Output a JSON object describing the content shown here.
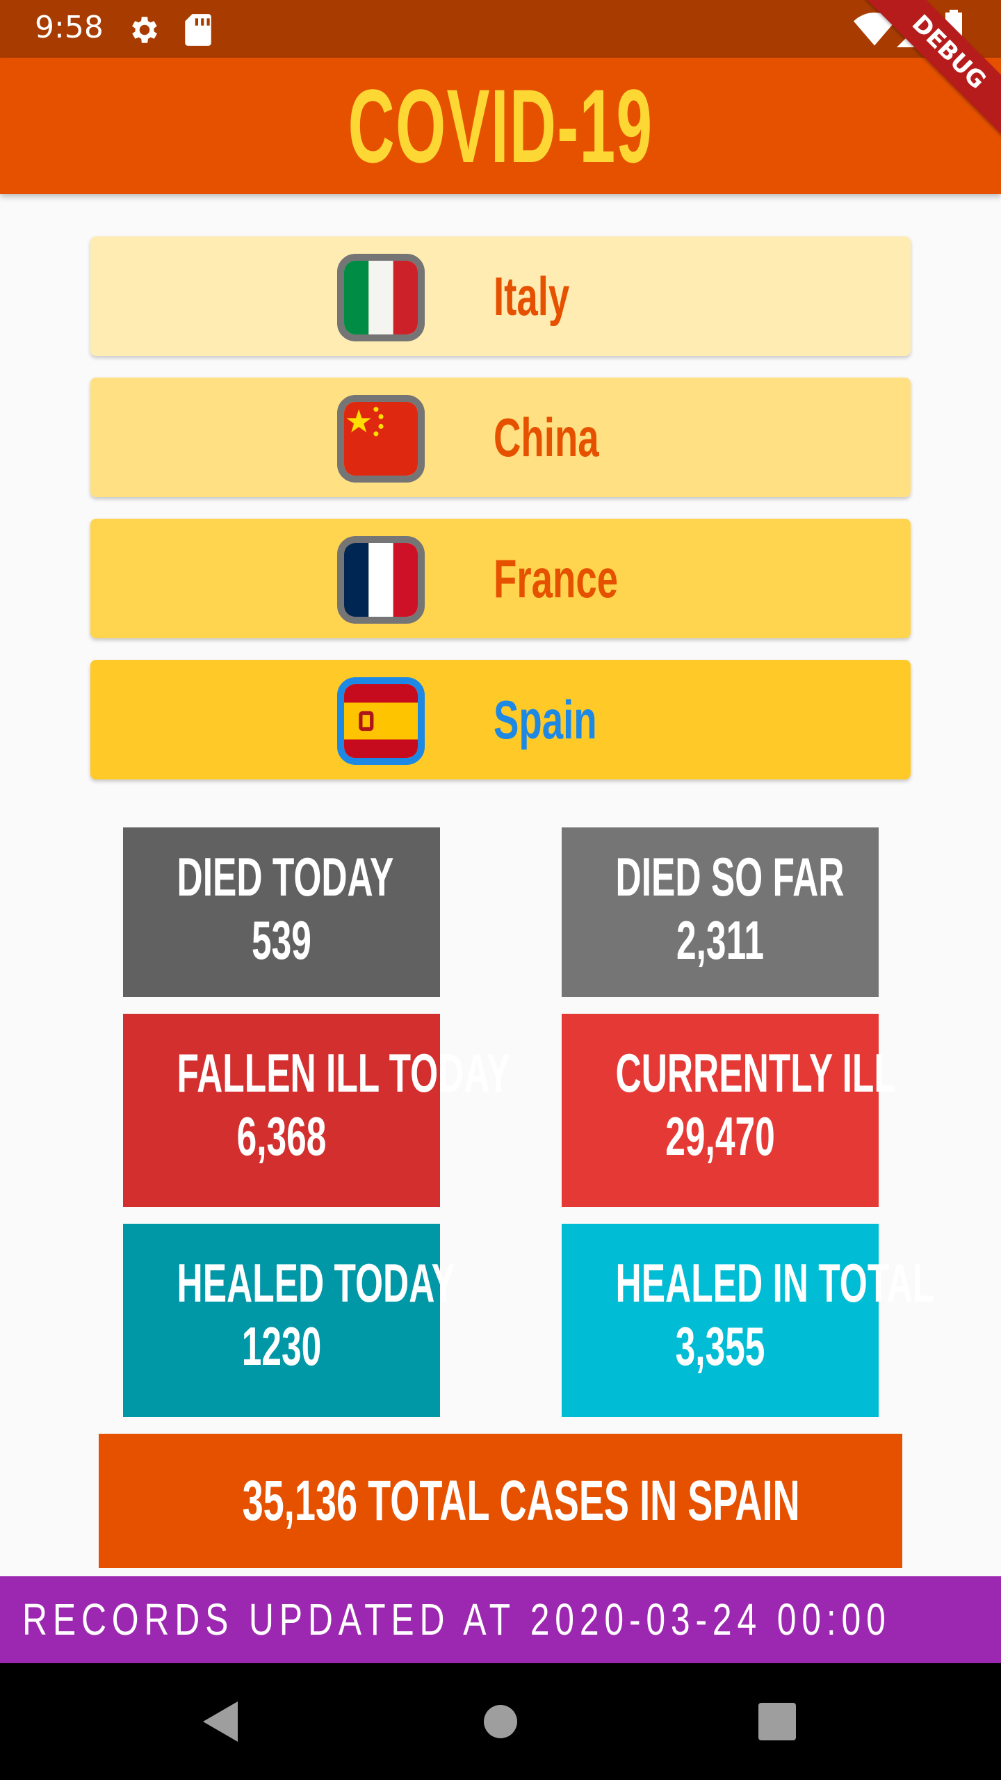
{
  "status_bar": {
    "time": "9:58",
    "icons": [
      "gear-icon",
      "sd-card-icon",
      "wifi-icon",
      "signal-icon",
      "battery-icon"
    ]
  },
  "app_bar": {
    "title": "COVID-19",
    "debug_banner": "DEBUG"
  },
  "countries": [
    {
      "name": "Italy",
      "flag": "italy-flag",
      "bg": "#ffecb3",
      "selected": false
    },
    {
      "name": "China",
      "flag": "china-flag",
      "bg": "#ffe082",
      "selected": false
    },
    {
      "name": "France",
      "flag": "france-flag",
      "bg": "#ffd54f",
      "selected": false
    },
    {
      "name": "Spain",
      "flag": "spain-flag",
      "bg": "#ffca28",
      "selected": true
    }
  ],
  "stats": {
    "died_today": {
      "label": "DIED TODAY",
      "value": "539",
      "color": "#616161"
    },
    "died_so_far": {
      "label": "DIED SO FAR",
      "value": "2,311",
      "color": "#757575"
    },
    "fallen_ill_today": {
      "label": "FALLEN ILL TODAY",
      "value": "6,368",
      "color": "#d32f2f"
    },
    "currently_ill": {
      "label": "CURRENTLY ILL",
      "value": "29,470",
      "color": "#e53935"
    },
    "healed_today": {
      "label": "HEALED TODAY",
      "value": "1230",
      "color": "#0097a7"
    },
    "healed_in_total": {
      "label": "HEALED IN TOTAL",
      "value": "3,355",
      "color": "#00bcd4"
    }
  },
  "total": {
    "text": "35,136 TOTAL CASES IN SPAIN",
    "color": "#e65100"
  },
  "records": {
    "text": "RECORDS UPDATED AT 2020-03-24 00:00",
    "color": "#9c27b0"
  },
  "nav_bar": {
    "icons": [
      "back-icon",
      "home-icon",
      "recents-icon"
    ]
  }
}
